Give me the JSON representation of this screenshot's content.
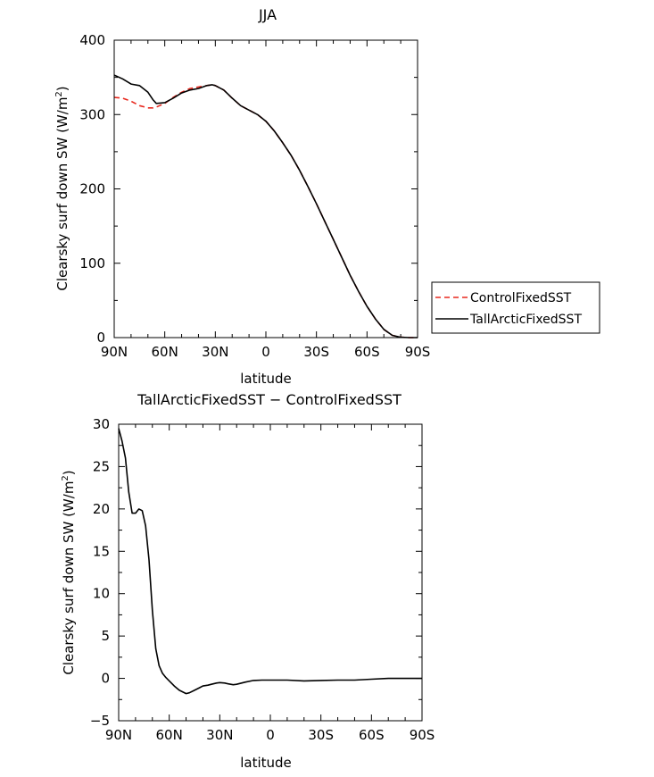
{
  "chart_data": [
    {
      "type": "line",
      "title": "JJA",
      "xlabel": "latitude",
      "ylabel": "Clearsky surf down SW (W/m",
      "ylabel_sup": "2",
      "ylabel_close": ")",
      "xlim": [
        90,
        -90
      ],
      "ylim": [
        0,
        400
      ],
      "xticks": [
        90,
        60,
        30,
        0,
        -30,
        -60,
        -90
      ],
      "xtick_labels": [
        "90N",
        "60N",
        "30N",
        "0",
        "30S",
        "60S",
        "90S"
      ],
      "yticks": [
        0,
        100,
        200,
        300,
        400
      ],
      "ytick_labels": [
        "0",
        "100",
        "200",
        "300",
        "400"
      ],
      "grid": false,
      "legend_position": "right",
      "series": [
        {
          "name": "ControlFixedSST",
          "color": "#e8281e",
          "dash": "dashed",
          "x": [
            90,
            85,
            80,
            75,
            70,
            67,
            65,
            60,
            55,
            50,
            45,
            40,
            35,
            32,
            30,
            25,
            20,
            15,
            10,
            5,
            0,
            -5,
            -10,
            -15,
            -20,
            -25,
            -30,
            -35,
            -40,
            -45,
            -50,
            -55,
            -60,
            -65,
            -70,
            -75,
            -80,
            -85,
            -90
          ],
          "y": [
            323,
            322,
            318,
            312,
            309,
            309,
            310,
            315,
            323,
            330,
            335,
            337,
            339,
            340,
            339,
            333,
            322,
            312,
            306,
            300,
            291,
            278,
            262,
            245,
            225,
            203,
            180,
            156,
            132,
            108,
            84,
            62,
            42,
            25,
            11,
            3,
            0.5,
            0,
            0
          ]
        },
        {
          "name": "TallArcticFixedSST",
          "color": "#000000",
          "dash": "solid",
          "x": [
            90,
            85,
            80,
            75,
            70,
            67,
            65,
            60,
            55,
            50,
            45,
            40,
            35,
            32,
            30,
            25,
            20,
            15,
            10,
            5,
            0,
            -5,
            -10,
            -15,
            -20,
            -25,
            -30,
            -35,
            -40,
            -45,
            -50,
            -55,
            -60,
            -65,
            -70,
            -75,
            -80,
            -85,
            -90
          ],
          "y": [
            353,
            348,
            341,
            339,
            330,
            320,
            315,
            316,
            322,
            329,
            333,
            335,
            339,
            340,
            339,
            333,
            322,
            312,
            306,
            300,
            291,
            278,
            262,
            245,
            225,
            203,
            180,
            156,
            132,
            108,
            84,
            62,
            42,
            25,
            11,
            3,
            0.5,
            0,
            0
          ]
        }
      ]
    },
    {
      "type": "line",
      "title": "TallArcticFixedSST − ControlFixedSST",
      "xlabel": "latitude",
      "ylabel": "Clearsky surf down SW (W/m",
      "ylabel_sup": "2",
      "ylabel_close": ")",
      "xlim": [
        90,
        -90
      ],
      "ylim": [
        -5,
        30
      ],
      "xticks": [
        90,
        60,
        30,
        0,
        -30,
        -60,
        -90
      ],
      "xtick_labels": [
        "90N",
        "60N",
        "30N",
        "0",
        "30S",
        "60S",
        "90S"
      ],
      "yticks": [
        -5,
        0,
        5,
        10,
        15,
        20,
        25,
        30
      ],
      "ytick_labels": [
        "−5",
        "0",
        "5",
        "10",
        "15",
        "20",
        "25",
        "30"
      ],
      "grid": false,
      "series": [
        {
          "color": "#000000",
          "dash": "solid",
          "x": [
            90,
            88,
            86,
            84,
            82,
            80,
            78,
            76,
            74,
            72,
            70,
            68,
            66,
            64,
            62,
            60,
            57,
            54,
            50,
            48,
            45,
            42,
            40,
            37,
            35,
            32,
            30,
            27,
            25,
            22,
            20,
            15,
            10,
            5,
            0,
            -10,
            -20,
            -30,
            -40,
            -50,
            -60,
            -70,
            -80,
            -90
          ],
          "y": [
            29.5,
            28,
            26,
            22,
            19.5,
            19.5,
            20,
            19.8,
            18,
            14,
            8,
            3.5,
            1.5,
            0.6,
            0.1,
            -0.3,
            -0.9,
            -1.4,
            -1.8,
            -1.7,
            -1.4,
            -1.1,
            -0.9,
            -0.8,
            -0.7,
            -0.55,
            -0.5,
            -0.55,
            -0.65,
            -0.75,
            -0.7,
            -0.45,
            -0.25,
            -0.2,
            -0.2,
            -0.2,
            -0.3,
            -0.25,
            -0.2,
            -0.2,
            -0.1,
            0,
            0,
            0
          ]
        }
      ]
    }
  ]
}
